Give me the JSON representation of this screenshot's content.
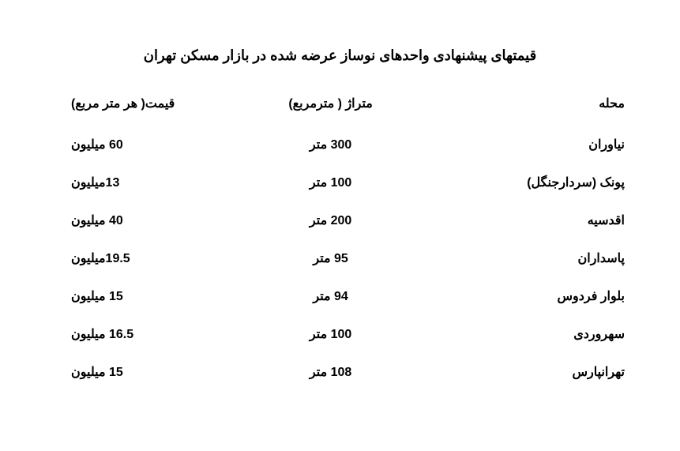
{
  "title": "قیمتهای پیشنهادی واحدهای نوساز عرضه شده در بازار مسکن تهران",
  "columns": {
    "district": "محله",
    "area": "متراژ ( مترمربع)",
    "price": "قیمت( هر متر مربع)"
  },
  "rows": [
    {
      "district": "نیاوران",
      "area": "300 متر",
      "price": "60 میلیون"
    },
    {
      "district": "پونک (سردارجنگل)",
      "area": "100 متر",
      "price": "13میلیون"
    },
    {
      "district": "اقدسیه",
      "area": "200 متر",
      "price": "40 میلیون"
    },
    {
      "district": "پاسداران",
      "area": "95 متر",
      "price": "19.5میلیون"
    },
    {
      "district": "بلوار فردوس",
      "area": "94 متر",
      "price": "15 میلیون"
    },
    {
      "district": "سهروردی",
      "area": "100 متر",
      "price": "16.5 میلیون"
    },
    {
      "district": "تهرانپارس",
      "area": "108 متر",
      "price": "15 میلیون"
    }
  ],
  "styling": {
    "background_color": "#ffffff",
    "text_color": "#000000",
    "title_fontsize": 18,
    "body_fontsize": 16,
    "font_family": "Tahoma",
    "direction": "rtl"
  }
}
